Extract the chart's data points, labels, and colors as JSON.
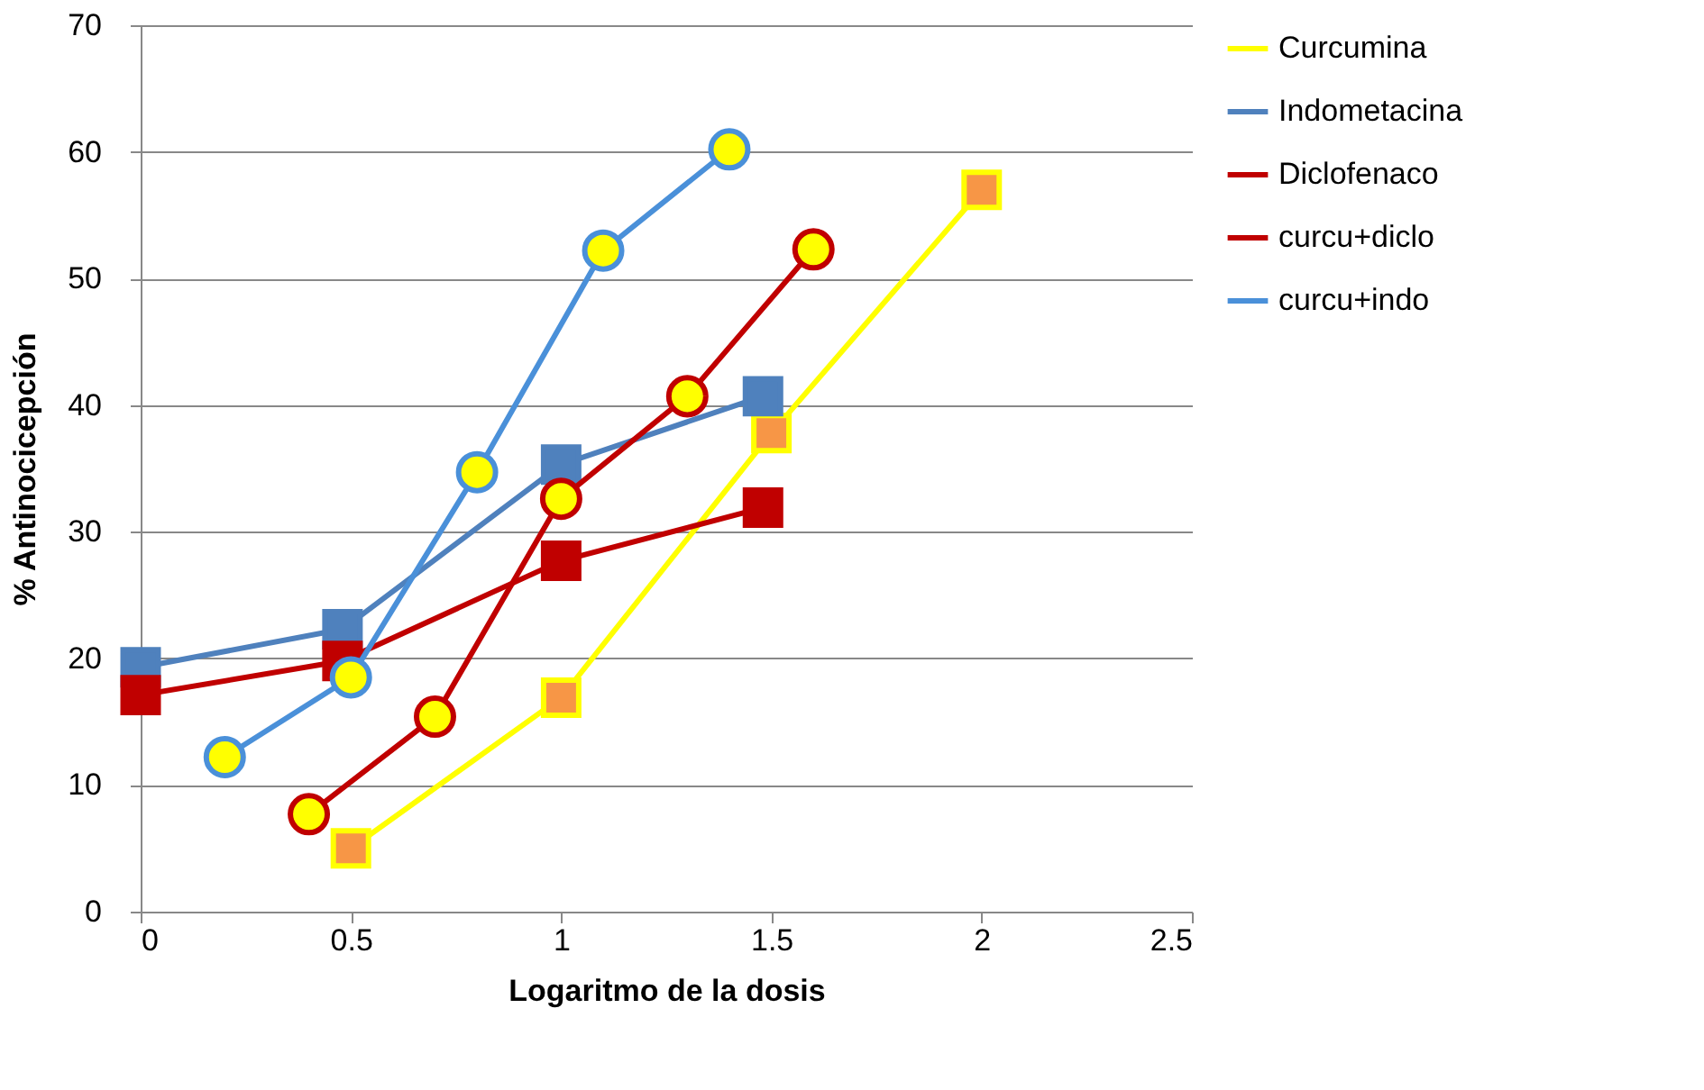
{
  "chart_data": {
    "type": "line",
    "xlabel": "Logaritmo de la dosis",
    "ylabel": "% Antinocicepción",
    "xlim": [
      0,
      2.5
    ],
    "xticks": [
      0,
      0.5,
      1,
      1.5,
      2,
      2.5
    ],
    "ylim": [
      0,
      70
    ],
    "yticks": [
      0,
      10,
      20,
      30,
      40,
      50,
      60,
      70
    ],
    "grid": "y",
    "legend": "right",
    "line_style": "solid",
    "series": [
      {
        "name": "Curcumina",
        "color": "#ffff00",
        "marker": "square",
        "colors": [
          "#f79646",
          "#f79646",
          "#f79646",
          "#f79646"
        ],
        "x": [
          0.5,
          1,
          1.5,
          2
        ],
        "values": [
          5.0,
          16.9,
          37.8,
          57.0
        ]
      },
      {
        "name": "Indometacina",
        "color": "#4f81bd",
        "marker": "square",
        "colors": [
          "#4f81bd",
          "#4f81bd",
          "#4f81bd",
          "#4f81bd"
        ],
        "x": [
          0,
          0.48,
          1,
          1.48
        ],
        "values": [
          19.3,
          22.3,
          35.3,
          40.7
        ]
      },
      {
        "name": "Diclofenaco",
        "color": "#c00000",
        "marker": "square",
        "colors": [
          "#c00000",
          "#c00000",
          "#c00000",
          "#c00000"
        ],
        "x": [
          0,
          0.48,
          1,
          1.48
        ],
        "values": [
          17.1,
          19.8,
          27.7,
          31.9
        ]
      },
      {
        "name": "curcu+diclo",
        "color": "#c00000",
        "marker": "circle",
        "colors": [
          "#ffff00",
          "#ffff00",
          "#ffff00",
          "#ffff00",
          "#ffff00"
        ],
        "x": [
          0.4,
          0.7,
          1,
          1.3,
          1.6
        ],
        "values": [
          7.7,
          15.4,
          32.6,
          40.7,
          52.3
        ]
      },
      {
        "name": "curcu+indo",
        "color": "#4a90d9",
        "marker": "circle",
        "colors": [
          "#ffff00",
          "#ffff00",
          "#ffff00",
          "#ffff00",
          "#ffff00"
        ],
        "x": [
          0.2,
          0.5,
          0.8,
          1.1,
          1.4
        ],
        "values": [
          12.2,
          18.5,
          34.7,
          52.2,
          60.2
        ]
      }
    ]
  }
}
